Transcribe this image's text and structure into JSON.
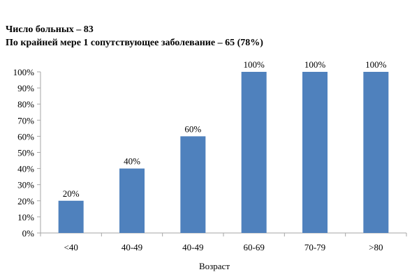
{
  "chart_data": {
    "type": "bar",
    "title": [
      "Число больных – 83",
      "По крайней мере 1 сопутствующее заболевание – 65  (78%)"
    ],
    "xlabel": "Возраст",
    "ylabel": "",
    "categories": [
      "<40",
      "40-49",
      "40-49",
      "60-69",
      "70-79",
      ">80"
    ],
    "values": [
      20,
      40,
      60,
      100,
      100,
      100
    ],
    "data_labels": [
      "20%",
      "40%",
      "60%",
      "100%",
      "100%",
      "100%"
    ],
    "ylim": [
      0,
      100
    ],
    "yticks": [
      0,
      10,
      20,
      30,
      40,
      50,
      60,
      70,
      80,
      90,
      100
    ],
    "ytick_labels": [
      "0%",
      "10%",
      "20%",
      "30%",
      "40%",
      "50%",
      "60%",
      "70%",
      "80%",
      "90%",
      "100%"
    ],
    "grid": false,
    "legend": "none",
    "bar_color": "#4f81bd",
    "axis_color": "#a6a6a6"
  }
}
